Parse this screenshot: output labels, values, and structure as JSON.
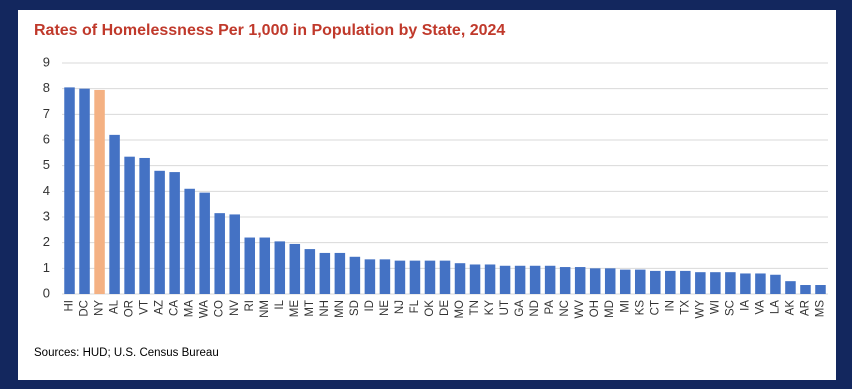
{
  "chart_data": {
    "type": "bar",
    "title": "Rates of Homelessness Per 1,000 in Population by State, 2024",
    "source": "Sources: HUD; U.S. Census Bureau",
    "categories": [
      "HI",
      "DC",
      "NY",
      "AL",
      "OR",
      "VT",
      "AZ",
      "CA",
      "MA",
      "WA",
      "CO",
      "NV",
      "RI",
      "NM",
      "IL",
      "ME",
      "MT",
      "NH",
      "MN",
      "SD",
      "ID",
      "NE",
      "NJ",
      "FL",
      "OK",
      "DE",
      "MO",
      "TN",
      "KY",
      "UT",
      "GA",
      "ND",
      "PA",
      "NC",
      "WV",
      "OH",
      "MD",
      "MI",
      "KS",
      "CT",
      "IN",
      "TX",
      "WY",
      "WI",
      "SC",
      "IA",
      "VA",
      "LA",
      "AK",
      "AR",
      "MS"
    ],
    "values": [
      8.05,
      8.0,
      7.95,
      6.2,
      5.35,
      5.3,
      4.8,
      4.75,
      4.1,
      3.95,
      3.15,
      3.1,
      2.2,
      2.2,
      2.05,
      1.95,
      1.75,
      1.6,
      1.6,
      1.45,
      1.35,
      1.35,
      1.3,
      1.3,
      1.3,
      1.3,
      1.2,
      1.15,
      1.15,
      1.1,
      1.1,
      1.1,
      1.1,
      1.05,
      1.05,
      1.0,
      1.0,
      0.95,
      0.95,
      0.9,
      0.9,
      0.9,
      0.85,
      0.85,
      0.85,
      0.8,
      0.8,
      0.75,
      0.5,
      0.35,
      0.35
    ],
    "color": "#4472c4",
    "highlight_index_color": {
      "NY": "#f4b183"
    },
    "ylim": [
      0,
      9
    ],
    "yticks": [
      0,
      1,
      2,
      3,
      4,
      5,
      6,
      7,
      8,
      9
    ],
    "grid": true
  }
}
